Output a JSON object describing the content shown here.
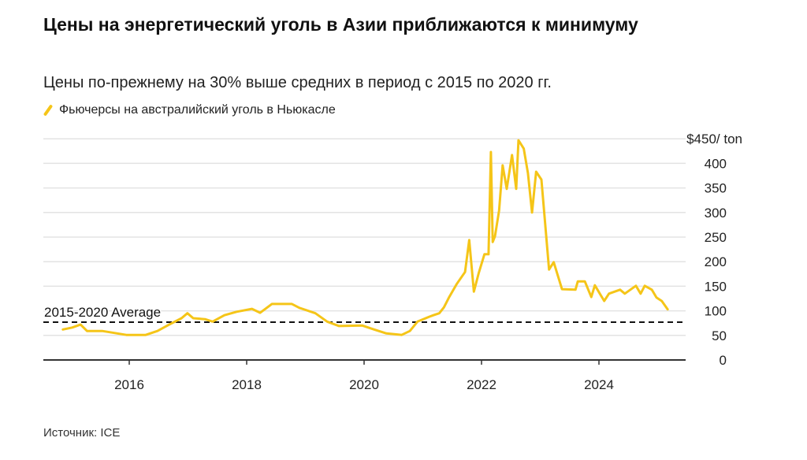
{
  "title": "Цены на энергетический уголь в Азии приближаются к минимуму",
  "subtitle": "Цены по-прежнему на 30% выше средних в период с 2015 по 2020 гг.",
  "source": "Источник: ICE",
  "chart_data": {
    "type": "line",
    "legend": [
      "Фьючерсы на австралийский уголь в Ньюкасле"
    ],
    "line_color": "#f5c518",
    "ylim": [
      0,
      450
    ],
    "yticks": [
      0,
      50,
      100,
      150,
      200,
      250,
      300,
      350,
      400,
      450
    ],
    "ytick_labels": [
      "0",
      "50",
      "100",
      "150",
      "200",
      "250",
      "300",
      "350",
      "400",
      "$450/ ton"
    ],
    "xticks": [
      2016,
      2018,
      2020,
      2022,
      2024
    ],
    "xtick_labels": [
      "2016",
      "2018",
      "2020",
      "2022",
      "2024"
    ],
    "xlim": [
      2014.55,
      2025.5
    ],
    "y_axis_position": "right",
    "grid": true,
    "reference_line": {
      "label": "2015-2020 Average",
      "value": 77
    },
    "series": [
      {
        "name": "Фьючерсы на австралийский уголь в Ньюкасле",
        "x": [
          2014.87,
          2015.03,
          2015.17,
          2015.28,
          2015.54,
          2015.95,
          2016.28,
          2016.48,
          2016.68,
          2016.89,
          2016.99,
          2017.09,
          2017.29,
          2017.42,
          2017.62,
          2017.83,
          2018.09,
          2018.23,
          2018.43,
          2018.77,
          2018.9,
          2019.17,
          2019.37,
          2019.57,
          2019.97,
          2020.17,
          2020.38,
          2020.64,
          2020.78,
          2020.91,
          2021.11,
          2021.18,
          2021.28,
          2021.36,
          2021.45,
          2021.58,
          2021.72,
          2021.79,
          2021.87,
          2021.95,
          2022.05,
          2022.12,
          2022.16,
          2022.19,
          2022.23,
          2022.3,
          2022.36,
          2022.43,
          2022.52,
          2022.59,
          2022.63,
          2022.72,
          2022.79,
          2022.86,
          2022.93,
          2023.02,
          2023.15,
          2023.23,
          2023.37,
          2023.6,
          2023.64,
          2023.76,
          2023.87,
          2023.93,
          2024.09,
          2024.17,
          2024.36,
          2024.44,
          2024.63,
          2024.71,
          2024.78,
          2024.9,
          2024.98,
          2025.07,
          2025.17
        ],
        "values": [
          62,
          66,
          72,
          59,
          59,
          51,
          51,
          59,
          72,
          85,
          95,
          85,
          83,
          78,
          91,
          98,
          104,
          96,
          114,
          114,
          106,
          95,
          78,
          69,
          70,
          62,
          54,
          51,
          59,
          78,
          88,
          91,
          95,
          107,
          128,
          155,
          179,
          244,
          139,
          176,
          215,
          215,
          423,
          240,
          252,
          304,
          396,
          348,
          417,
          348,
          447,
          430,
          380,
          300,
          383,
          367,
          184,
          199,
          144,
          143,
          160,
          160,
          128,
          152,
          120,
          135,
          143,
          135,
          151,
          135,
          151,
          143,
          127,
          120,
          103
        ]
      }
    ]
  }
}
